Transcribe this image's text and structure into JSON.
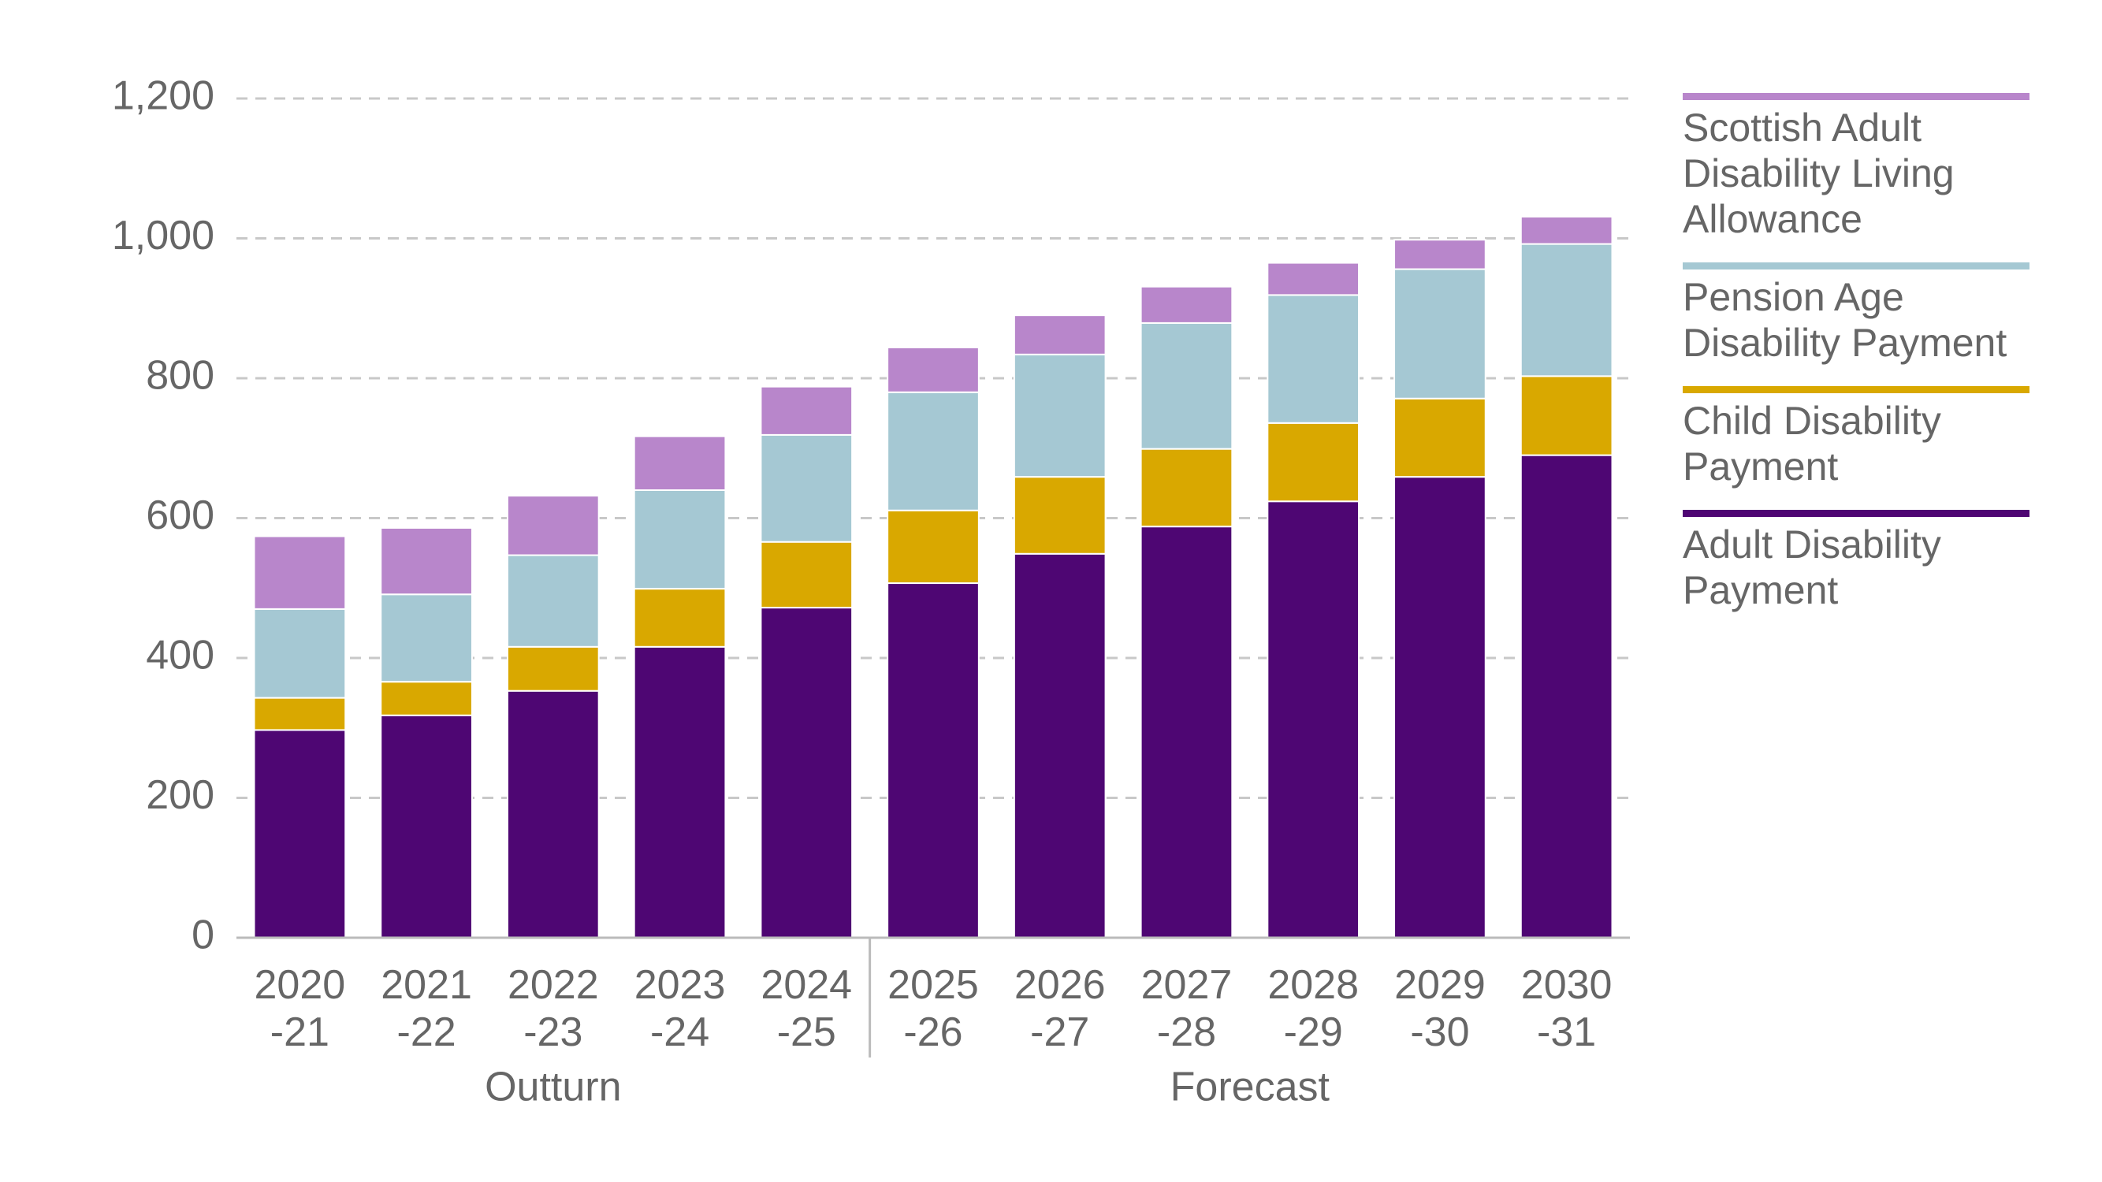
{
  "chart_data": {
    "type": "stacked-bar",
    "categories": [
      [
        "2020",
        "-21"
      ],
      [
        "2021",
        "-22"
      ],
      [
        "2022",
        "-23"
      ],
      [
        "2023",
        "-24"
      ],
      [
        "2024",
        "-25"
      ],
      [
        "2025",
        "-26"
      ],
      [
        "2026",
        "-27"
      ],
      [
        "2027",
        "-28"
      ],
      [
        "2028",
        "-29"
      ],
      [
        "2029",
        "-30"
      ],
      [
        "2030",
        "-31"
      ]
    ],
    "x_groups": [
      "Outturn",
      "Outturn",
      "Outturn",
      "Outturn",
      "Outturn",
      "Forecast",
      "Forecast",
      "Forecast",
      "Forecast",
      "Forecast",
      "Forecast"
    ],
    "series": [
      {
        "name": "Adult Disability Payment",
        "color": "#4e0673",
        "values": [
          297,
          318,
          353,
          416,
          472,
          507,
          549,
          588,
          624,
          659,
          690
        ]
      },
      {
        "name": "Child Disability Payment",
        "color": "#d9a800",
        "values": [
          46,
          48,
          63,
          83,
          94,
          104,
          110,
          111,
          112,
          112,
          113
        ]
      },
      {
        "name": "Pension Age Disability Payment",
        "color": "#a5c8d3",
        "values": [
          127,
          125,
          131,
          141,
          153,
          169,
          175,
          180,
          183,
          185,
          189
        ]
      },
      {
        "name": "Scottish Adult Disability Living Allowance",
        "color": "#b886cb",
        "values": [
          104,
          95,
          85,
          77,
          69,
          64,
          56,
          52,
          46,
          42,
          39
        ]
      }
    ],
    "ylim": [
      0,
      1200
    ],
    "yticks": [
      0,
      200,
      400,
      600,
      800,
      {
        "value": 1000,
        "label": "1,000"
      },
      {
        "value": 1200,
        "label": "1,200"
      }
    ],
    "grid": true,
    "legend": "right"
  }
}
